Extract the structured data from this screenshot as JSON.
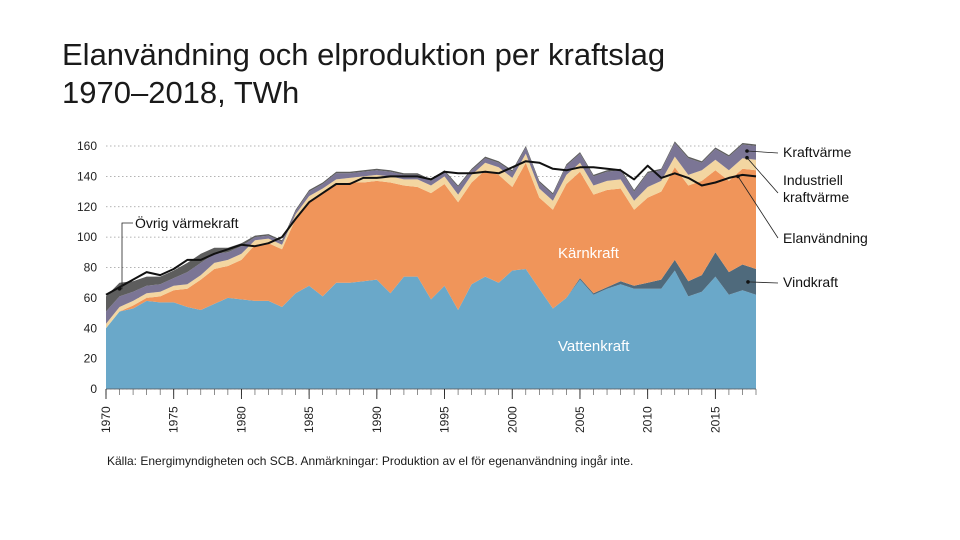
{
  "title": {
    "line1": "Elanvändning och elproduktion per kraftslag",
    "line2": "1970–2018, TWh"
  },
  "source": "Källa: Energimyndigheten och SCB. Anmärkningar: Produktion av el för egenanvändning ingår inte.",
  "colors": {
    "vattenkraft": "#6aa8c9",
    "vindkraft": "#4f6a7c",
    "karnkraft": "#f0955a",
    "industriell": "#f3d6a1",
    "kraftvarme": "#7b7595",
    "ovrig": "#5d5d5d",
    "elanvandning": "#111111"
  },
  "chart_data": {
    "type": "area",
    "stacked": true,
    "title": "Elanvändning och elproduktion per kraftslag 1970–2018, TWh",
    "xlabel": "",
    "ylabel": "TWh",
    "xlim": [
      1970,
      2018
    ],
    "ylim": [
      0,
      160
    ],
    "yticks": [
      0,
      20,
      40,
      60,
      80,
      100,
      120,
      140,
      160
    ],
    "xticks": [
      1970,
      1975,
      1980,
      1985,
      1990,
      1995,
      2000,
      2005,
      2010,
      2015
    ],
    "x": [
      1970,
      1971,
      1972,
      1973,
      1974,
      1975,
      1976,
      1977,
      1978,
      1979,
      1980,
      1981,
      1982,
      1983,
      1984,
      1985,
      1986,
      1987,
      1988,
      1989,
      1990,
      1991,
      1992,
      1993,
      1994,
      1995,
      1996,
      1997,
      1998,
      1999,
      2000,
      2001,
      2002,
      2003,
      2004,
      2005,
      2006,
      2007,
      2008,
      2009,
      2010,
      2011,
      2012,
      2013,
      2014,
      2015,
      2016,
      2017,
      2018
    ],
    "series": [
      {
        "key": "vattenkraft",
        "name": "Vattenkraft",
        "values": [
          40,
          51,
          53,
          58,
          57,
          57,
          54,
          52,
          56,
          60,
          59,
          58,
          58,
          54,
          63,
          68,
          61,
          70,
          70,
          71,
          72,
          63,
          74,
          74,
          59,
          68,
          52,
          69,
          74,
          70,
          78,
          79,
          66,
          53,
          60,
          72,
          62,
          66,
          69,
          66,
          66,
          66,
          78,
          61,
          64,
          74,
          62,
          65,
          62
        ]
      },
      {
        "key": "vindkraft",
        "name": "Vindkraft",
        "values": [
          0,
          0,
          0,
          0,
          0,
          0,
          0,
          0,
          0,
          0,
          0,
          0,
          0,
          0,
          0,
          0,
          0,
          0,
          0,
          0,
          0,
          0,
          0,
          0,
          0,
          0,
          0,
          0,
          0,
          0,
          0,
          0,
          0,
          0,
          0,
          1,
          1,
          1,
          2,
          2,
          4,
          6,
          7,
          10,
          11,
          16,
          15,
          17,
          17
        ]
      },
      {
        "key": "karnkraft",
        "name": "Kärnkraft",
        "values": [
          0,
          0,
          2,
          2,
          4,
          8,
          12,
          20,
          23,
          21,
          26,
          37,
          38,
          38,
          49,
          56,
          68,
          65,
          66,
          65,
          65,
          73,
          60,
          59,
          70,
          67,
          71,
          67,
          70,
          71,
          55,
          70,
          60,
          65,
          75,
          70,
          65,
          64,
          61,
          50,
          56,
          58,
          61,
          63,
          62,
          54,
          60,
          63,
          65
        ]
      },
      {
        "key": "industriell",
        "name": "Industriell kraftvärme",
        "values": [
          3,
          3,
          3,
          3,
          3,
          3,
          3,
          3,
          4,
          4,
          4,
          3,
          3,
          3,
          3,
          3,
          3,
          3,
          3,
          4,
          4,
          4,
          4,
          5,
          5,
          5,
          5,
          5,
          5,
          5,
          6,
          6,
          6,
          6,
          6,
          6,
          6,
          6,
          6,
          6,
          7,
          7,
          7,
          7,
          7,
          7,
          7,
          7,
          7
        ]
      },
      {
        "key": "kraftvarme",
        "name": "Kraftvärme",
        "values": [
          8,
          7,
          6,
          5,
          5,
          5,
          8,
          8,
          6,
          5,
          5,
          2,
          2,
          2,
          2,
          3,
          3,
          4,
          3,
          3,
          3,
          3,
          3,
          3,
          3,
          3,
          5,
          3,
          3,
          3,
          4,
          4,
          4,
          4,
          6,
          6,
          6,
          6,
          6,
          6,
          9,
          7,
          9,
          11,
          5,
          7,
          9,
          9,
          9
        ]
      },
      {
        "key": "ovrig",
        "name": "Övrig värmekraft",
        "values": [
          10,
          9,
          7,
          6,
          5,
          5,
          6,
          6,
          4,
          3,
          2,
          1,
          1,
          1,
          1,
          1,
          1,
          1,
          1,
          1,
          1,
          1,
          1,
          1,
          1,
          1,
          1,
          1,
          1,
          1,
          1,
          1,
          1,
          1,
          1,
          1,
          1,
          1,
          1,
          1,
          1,
          1,
          1,
          1,
          1,
          1,
          1,
          1,
          1
        ]
      }
    ],
    "line": {
      "key": "elanvandning",
      "name": "Elanvändning",
      "values": [
        62,
        67,
        72,
        77,
        75,
        79,
        85,
        85,
        89,
        92,
        95,
        94,
        96,
        100,
        112,
        123,
        129,
        135,
        135,
        139,
        139,
        140,
        140,
        140,
        138,
        143,
        142,
        142,
        143,
        142,
        146,
        150,
        149,
        145,
        144,
        146,
        146,
        145,
        144,
        138,
        147,
        139,
        142,
        139,
        134,
        136,
        139,
        141,
        140
      ]
    },
    "annotations": {
      "in_chart": [
        {
          "key": "karnkraft",
          "text": "Kärnkraft"
        },
        {
          "key": "vattenkraft",
          "text": "Vattenkraft"
        }
      ],
      "legend_right": [
        {
          "key": "kraftvarme",
          "text": "Kraftvärme"
        },
        {
          "key": "industriell",
          "text": "Industriell kraftvärme",
          "lines": [
            "Industriell",
            "kraftvärme"
          ]
        },
        {
          "key": "elanvandning",
          "text": "Elanvändning"
        },
        {
          "key": "vindkraft",
          "text": "Vindkraft"
        }
      ],
      "left_callout": {
        "key": "ovrig",
        "text": "Övrig värmekraft"
      }
    }
  }
}
